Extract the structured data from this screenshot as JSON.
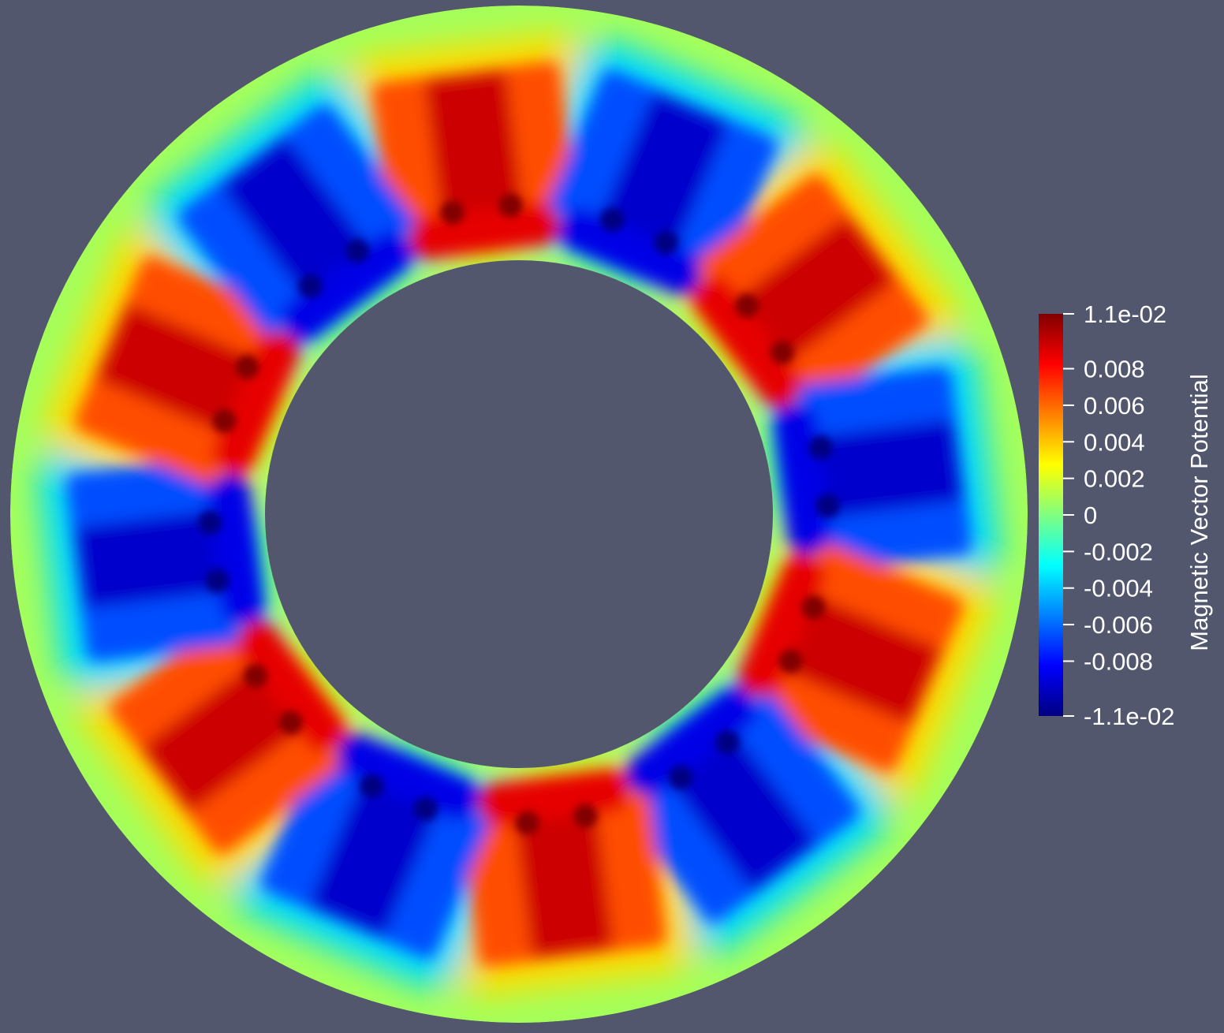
{
  "colors": {
    "background": "#52576e",
    "colormap": [
      "#000080",
      "#0000ff",
      "#0080ff",
      "#00ffff",
      "#80ff80",
      "#ffff00",
      "#ff8000",
      "#ff0000",
      "#800000"
    ]
  },
  "chart_data": {
    "type": "heatmap",
    "field": "Magnetic Vector Potential",
    "domain": "annulus",
    "pole_count": 12,
    "pole_signs": [
      1,
      -1,
      1,
      -1,
      1,
      -1,
      1,
      -1,
      1,
      -1,
      1,
      -1
    ],
    "pole_angles_deg": [
      97,
      67,
      37,
      7,
      -23,
      -53,
      -83,
      -113,
      -143,
      -173,
      157,
      127
    ],
    "peak_value": 0.011,
    "color_bar": {
      "title": "Magnetic Vector Potential",
      "range": [
        -0.011,
        0.011
      ],
      "ticks": [
        {
          "value": 0.011,
          "label": "1.1e-02"
        },
        {
          "value": 0.008,
          "label": "0.008"
        },
        {
          "value": 0.006,
          "label": "0.006"
        },
        {
          "value": 0.004,
          "label": "0.004"
        },
        {
          "value": 0.002,
          "label": "0.002"
        },
        {
          "value": 0,
          "label": "0"
        },
        {
          "value": -0.002,
          "label": "-0.002"
        },
        {
          "value": -0.004,
          "label": "-0.004"
        },
        {
          "value": -0.006,
          "label": "-0.006"
        },
        {
          "value": -0.008,
          "label": "-0.008"
        },
        {
          "value": -0.011,
          "label": "-1.1e-02"
        }
      ]
    }
  }
}
